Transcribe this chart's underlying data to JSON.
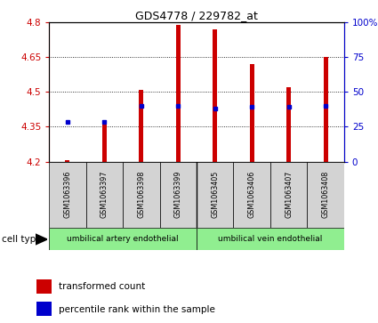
{
  "title": "GDS4778 / 229782_at",
  "samples": [
    "GSM1063396",
    "GSM1063397",
    "GSM1063398",
    "GSM1063399",
    "GSM1063405",
    "GSM1063406",
    "GSM1063407",
    "GSM1063408"
  ],
  "red_bar_top": [
    4.205,
    4.38,
    4.51,
    4.79,
    4.77,
    4.62,
    4.52,
    4.65
  ],
  "blue_dot_y": [
    4.37,
    4.37,
    4.44,
    4.44,
    4.43,
    4.435,
    4.435,
    4.44
  ],
  "bar_bottom": 4.2,
  "ylim_left": [
    4.2,
    4.8
  ],
  "yticks_left": [
    4.2,
    4.35,
    4.5,
    4.65,
    4.8
  ],
  "yticks_right": [
    0,
    25,
    50,
    75,
    100
  ],
  "ytick_labels_left": [
    "4.2",
    "4.35",
    "4.5",
    "4.65",
    "4.8"
  ],
  "ytick_labels_right": [
    "0",
    "25",
    "50",
    "75",
    "100%"
  ],
  "red_color": "#cc0000",
  "blue_color": "#0000cc",
  "bar_width": 0.12,
  "group1_label": "umbilical artery endothelial",
  "group2_label": "umbilical vein endothelial",
  "group_bg_color": "#90ee90",
  "sample_bg_color": "#d3d3d3",
  "legend1": "transformed count",
  "legend2": "percentile rank within the sample",
  "cell_type_label": "cell type",
  "grid_yticks": [
    4.35,
    4.5,
    4.65
  ],
  "fig_width": 4.25,
  "fig_height": 3.63,
  "dpi": 100
}
